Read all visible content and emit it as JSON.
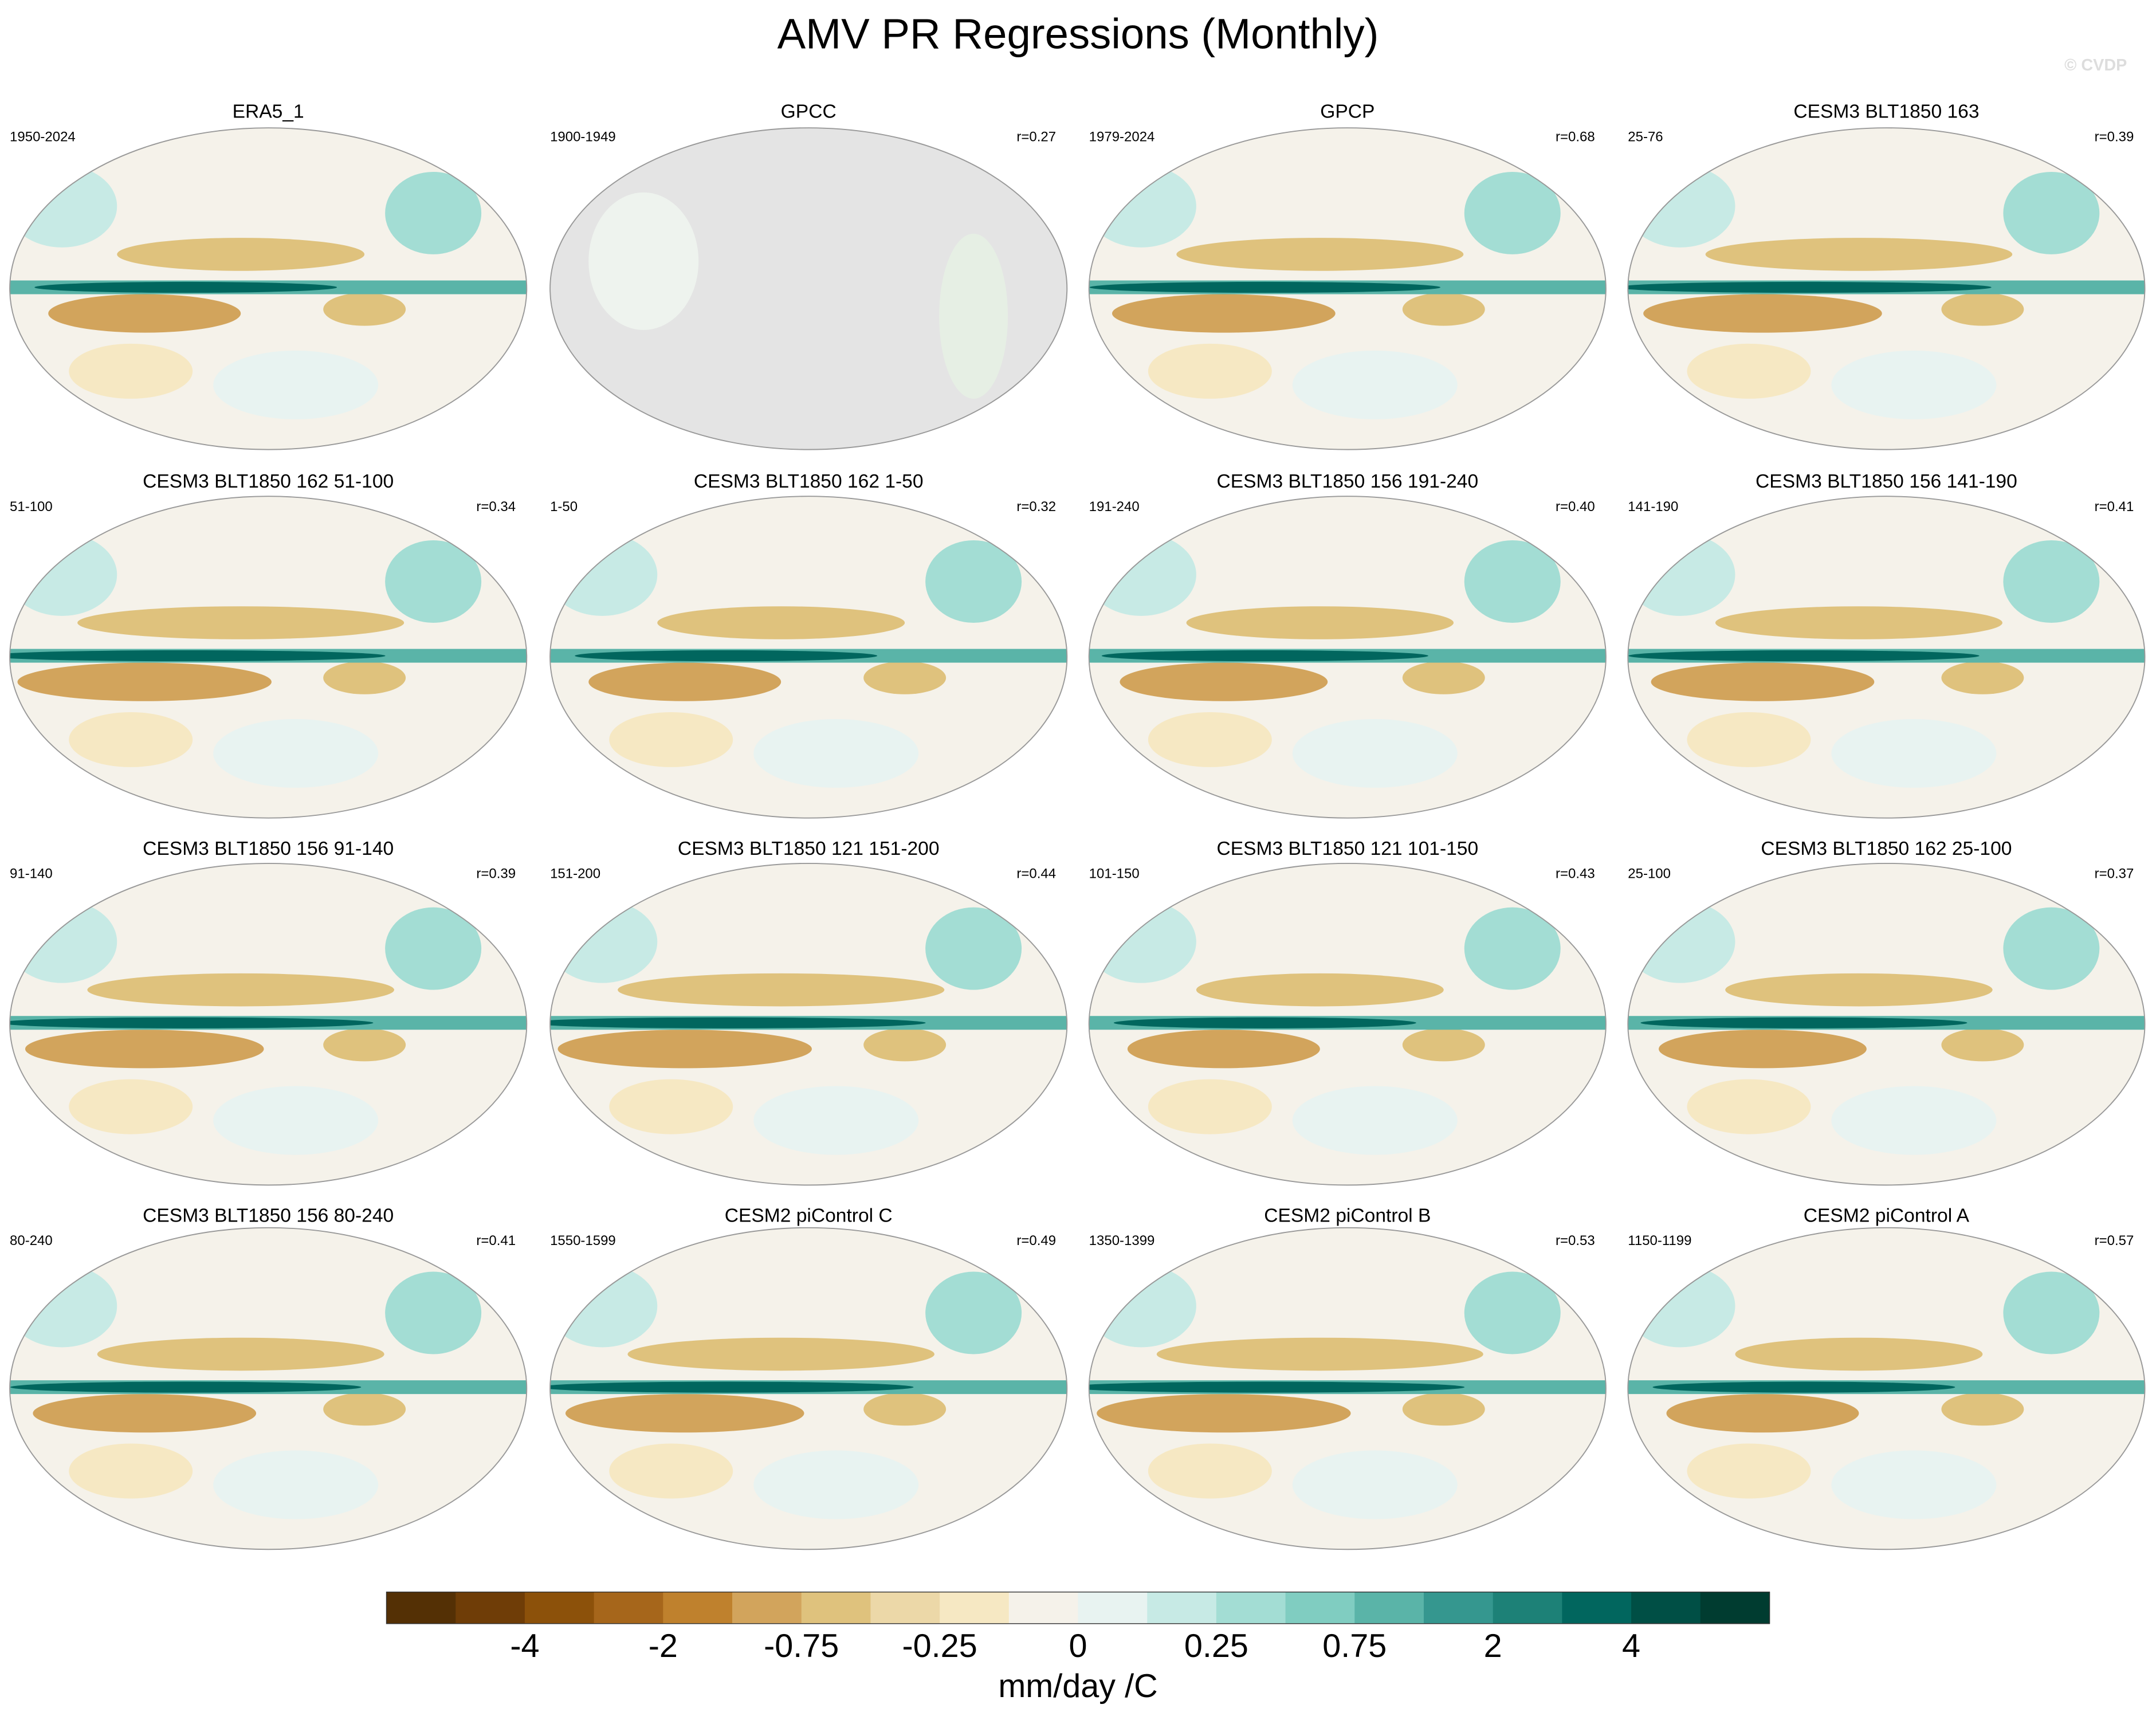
{
  "title": "AMV PR Regressions (Monthly)",
  "watermark": "© CVDP",
  "panels": [
    {
      "title": "ERA5_1",
      "period": "1950-2024"
    },
    {
      "title": "GPCC",
      "period": "1900-1949",
      "r": "r=0.27"
    },
    {
      "title": "GPCP",
      "period": "1979-2024",
      "r": "r=0.68"
    },
    {
      "title": "CESM3 BLT1850 163",
      "period": "25-76",
      "r": "r=0.39"
    },
    {
      "title": "CESM3 BLT1850 162 51-100",
      "period": "51-100",
      "r": "r=0.34"
    },
    {
      "title": "CESM3 BLT1850 162 1-50",
      "period": "1-50",
      "r": "r=0.32"
    },
    {
      "title": "CESM3 BLT1850 156 191-240",
      "period": "191-240",
      "r": "r=0.40"
    },
    {
      "title": "CESM3 BLT1850 156 141-190",
      "period": "141-190",
      "r": "r=0.41"
    },
    {
      "title": "CESM3 BLT1850 156 91-140",
      "period": "91-140",
      "r": "r=0.39"
    },
    {
      "title": "CESM3 BLT1850 121 151-200",
      "period": "151-200",
      "r": "r=0.44"
    },
    {
      "title": "CESM3 BLT1850 121 101-150",
      "period": "101-150",
      "r": "r=0.43"
    },
    {
      "title": "CESM3 BLT1850 162 25-100",
      "period": "25-100",
      "r": "r=0.37"
    },
    {
      "title": "CESM3 BLT1850 156 80-240",
      "period": "80-240",
      "r": "r=0.41"
    },
    {
      "title": "CESM2 piControl C",
      "period": "1550-1599",
      "r": "r=0.49"
    },
    {
      "title": "CESM2 piControl B",
      "period": "1350-1399",
      "r": "r=0.53"
    },
    {
      "title": "CESM2 piControl A",
      "period": "1150-1199",
      "r": "r=0.57"
    }
  ],
  "colorbar": {
    "colors": [
      "#543005",
      "#6f3d07",
      "#8c510a",
      "#a6661b",
      "#bf812d",
      "#d2a45c",
      "#dfc27d",
      "#ecd8a8",
      "#f6e8c3",
      "#f5f2ea",
      "#e8f3f1",
      "#c7eae5",
      "#a3ddd4",
      "#80cdc1",
      "#5ab4a8",
      "#35978f",
      "#1d8177",
      "#01665e",
      "#004f45",
      "#003c30"
    ],
    "labels": [
      "-4",
      "-2",
      "-0.75",
      "-0.25",
      "0",
      "0.25",
      "0.75",
      "2",
      "4"
    ],
    "units": "mm/day /C"
  }
}
